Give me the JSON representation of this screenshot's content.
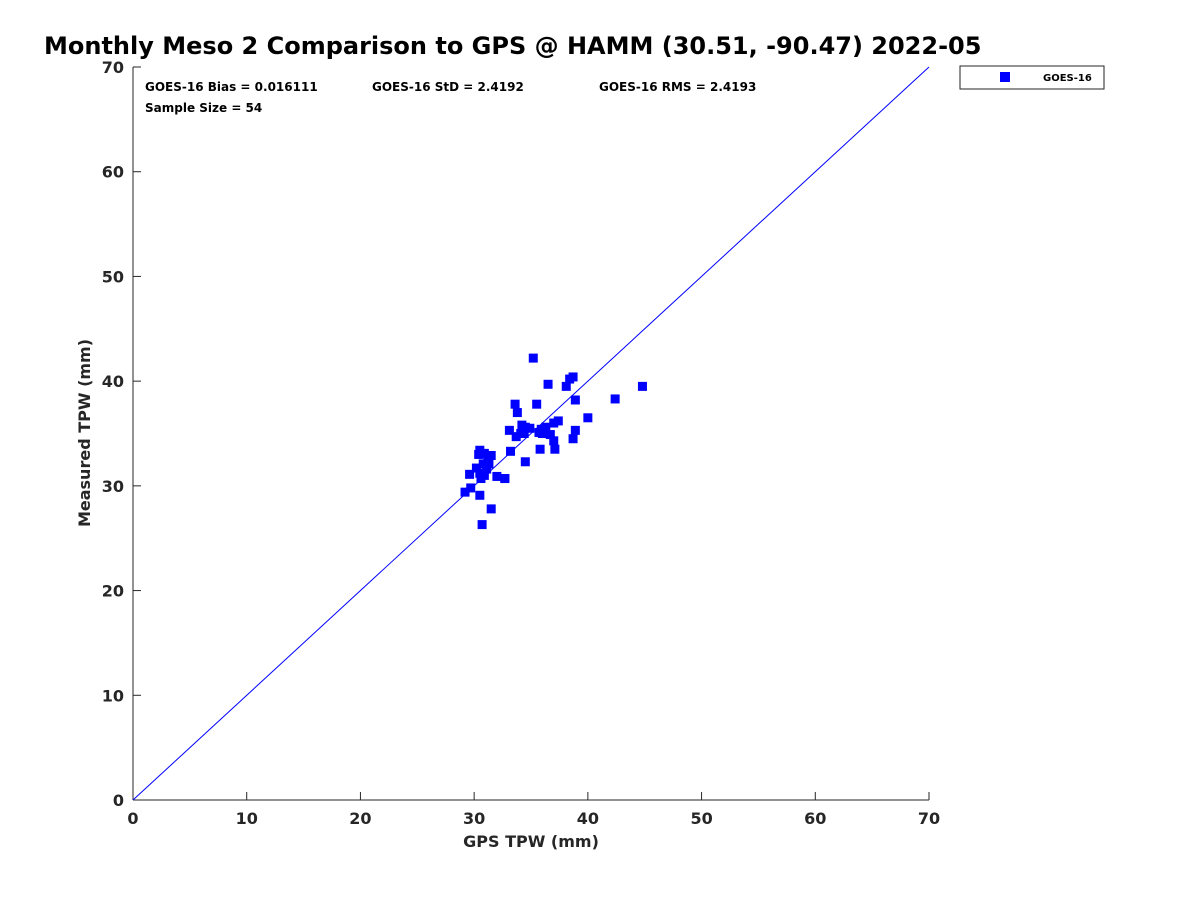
{
  "chart_data": {
    "type": "scatter",
    "title": "Monthly Meso 2 Comparison to GPS @ HAMM (30.51, -90.47) 2022-05",
    "xlabel": "GPS TPW (mm)",
    "ylabel": "Measured TPW (mm)",
    "xlim": [
      0,
      70
    ],
    "ylim": [
      0,
      70
    ],
    "xticks": [
      "0",
      "10",
      "20",
      "30",
      "40",
      "50",
      "60",
      "70"
    ],
    "yticks": [
      "0",
      "10",
      "20",
      "30",
      "40",
      "50",
      "60",
      "70"
    ],
    "grid": false,
    "legend_position": "top-right",
    "marker_color": "#0000ff",
    "line_color": "#0000ff",
    "reference_line": {
      "x": [
        0,
        70
      ],
      "y": [
        0,
        70
      ]
    },
    "stats": {
      "bias": "GOES-16 Bias = 0.016111",
      "std": "GOES-16 StD = 2.4192",
      "rms": "GOES-16 RMS = 2.4193",
      "sample_size": "Sample Size = 54"
    },
    "series": [
      {
        "name": "GOES-16",
        "points": [
          [
            29.2,
            29.4
          ],
          [
            29.7,
            29.8
          ],
          [
            29.6,
            31.1
          ],
          [
            30.2,
            31.7
          ],
          [
            30.5,
            31.2
          ],
          [
            30.6,
            30.7
          ],
          [
            30.9,
            31.0
          ],
          [
            30.4,
            33.0
          ],
          [
            30.5,
            33.4
          ],
          [
            30.9,
            33.1
          ],
          [
            31.2,
            32.3
          ],
          [
            31.5,
            32.9
          ],
          [
            30.8,
            32.1
          ],
          [
            31.3,
            32.1
          ],
          [
            31.1,
            31.6
          ],
          [
            30.5,
            29.1
          ],
          [
            30.7,
            26.3
          ],
          [
            31.5,
            27.8
          ],
          [
            32.0,
            30.9
          ],
          [
            32.7,
            30.7
          ],
          [
            33.2,
            33.3
          ],
          [
            33.1,
            35.3
          ],
          [
            33.7,
            34.7
          ],
          [
            34.2,
            35.8
          ],
          [
            34.1,
            35.0
          ],
          [
            34.4,
            35.0
          ],
          [
            34.9,
            35.5
          ],
          [
            34.5,
            35.6
          ],
          [
            34.5,
            32.3
          ],
          [
            33.8,
            37.0
          ],
          [
            33.6,
            37.8
          ],
          [
            35.2,
            42.2
          ],
          [
            35.5,
            37.8
          ],
          [
            35.7,
            35.1
          ],
          [
            35.9,
            35.4
          ],
          [
            36.3,
            35.6
          ],
          [
            35.8,
            33.5
          ],
          [
            36.5,
            39.7
          ],
          [
            36.7,
            34.9
          ],
          [
            37.0,
            34.3
          ],
          [
            37.1,
            33.5
          ],
          [
            37.0,
            36.0
          ],
          [
            37.4,
            36.2
          ],
          [
            38.1,
            39.5
          ],
          [
            38.4,
            40.2
          ],
          [
            38.7,
            40.4
          ],
          [
            38.9,
            38.2
          ],
          [
            38.7,
            34.5
          ],
          [
            38.9,
            35.3
          ],
          [
            40.0,
            36.5
          ],
          [
            42.4,
            38.3
          ],
          [
            44.8,
            39.5
          ],
          [
            32.7,
            30.7
          ],
          [
            36.0,
            35.0
          ]
        ]
      }
    ]
  }
}
